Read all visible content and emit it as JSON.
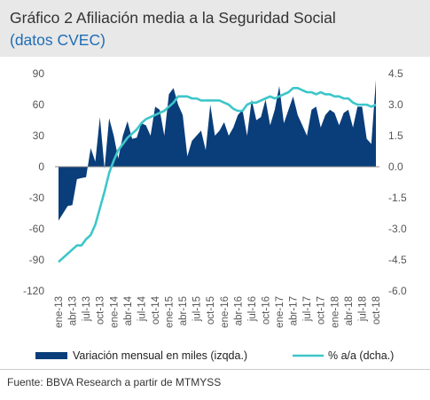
{
  "title": "Gráfico 2 Afiliación media a la Seguridad Social",
  "subtitle": "(datos CVEC)",
  "source": "Fuente: BBVA Research a partir de MTMYSS",
  "colors": {
    "area": "#0a3e7a",
    "line": "#3ec6c9",
    "title_blue": "#1f6db5"
  },
  "chart_data": {
    "type": "area",
    "x": [
      "ene-13",
      "feb-13",
      "mar-13",
      "abr-13",
      "may-13",
      "jun-13",
      "jul-13",
      "ago-13",
      "sep-13",
      "oct-13",
      "nov-13",
      "dic-13",
      "ene-14",
      "feb-14",
      "mar-14",
      "abr-14",
      "may-14",
      "jun-14",
      "jul-14",
      "ago-14",
      "sep-14",
      "oct-14",
      "nov-14",
      "dic-14",
      "ene-15",
      "feb-15",
      "mar-15",
      "abr-15",
      "may-15",
      "jun-15",
      "jul-15",
      "ago-15",
      "sep-15",
      "oct-15",
      "nov-15",
      "dic-15",
      "ene-16",
      "feb-16",
      "mar-16",
      "abr-16",
      "may-16",
      "jun-16",
      "jul-16",
      "ago-16",
      "sep-16",
      "oct-16",
      "nov-16",
      "dic-16",
      "ene-17",
      "feb-17",
      "mar-17",
      "abr-17",
      "may-17",
      "jun-17",
      "jul-17",
      "ago-17",
      "sep-17",
      "oct-17",
      "nov-17",
      "dic-17",
      "ene-18",
      "feb-18",
      "mar-18",
      "abr-18",
      "may-18",
      "jun-18",
      "jul-18",
      "ago-18",
      "sep-18",
      "oct-18"
    ],
    "x_tick_labels": [
      "ene-13",
      "abr-13",
      "jul-13",
      "oct-13",
      "ene-14",
      "abr-14",
      "jul-14",
      "oct-14",
      "ene-15",
      "abr-15",
      "jul-15",
      "oct-15",
      "ene-16",
      "abr-16",
      "jul-16",
      "oct-16",
      "ene-17",
      "abr-17",
      "jul-17",
      "oct-17",
      "ene-18",
      "abr-18",
      "jul-18",
      "oct-18"
    ],
    "series": [
      {
        "name": "Variación mensual en miles (izqda.)",
        "axis": "left",
        "values": [
          -52,
          -45,
          -38,
          -37,
          -12,
          -11,
          -10,
          18,
          5,
          48,
          -2,
          47,
          30,
          8,
          30,
          44,
          27,
          28,
          42,
          40,
          30,
          58,
          55,
          30,
          70,
          76,
          60,
          50,
          10,
          25,
          30,
          35,
          16,
          60,
          30,
          35,
          43,
          30,
          38,
          50,
          55,
          30,
          65,
          45,
          48,
          65,
          40,
          55,
          78,
          42,
          55,
          68,
          50,
          40,
          30,
          55,
          58,
          38,
          50,
          55,
          52,
          40,
          52,
          55,
          38,
          58,
          58,
          27,
          22,
          84
        ]
      },
      {
        "name": "% a/a (dcha.)",
        "axis": "right",
        "values": [
          -4.6,
          -4.4,
          -4.2,
          -4.0,
          -3.8,
          -3.8,
          -3.5,
          -3.3,
          -2.8,
          -2.0,
          -1.2,
          -0.3,
          0.3,
          0.8,
          1.1,
          1.4,
          1.6,
          1.8,
          2.1,
          2.3,
          2.4,
          2.5,
          2.6,
          2.7,
          2.9,
          3.1,
          3.4,
          3.4,
          3.4,
          3.3,
          3.3,
          3.2,
          3.2,
          3.2,
          3.2,
          3.2,
          3.1,
          3.0,
          2.8,
          2.7,
          2.7,
          3.0,
          3.1,
          3.1,
          3.2,
          3.3,
          3.4,
          3.3,
          3.4,
          3.5,
          3.6,
          3.8,
          3.8,
          3.7,
          3.6,
          3.6,
          3.5,
          3.6,
          3.5,
          3.5,
          3.4,
          3.4,
          3.3,
          3.3,
          3.1,
          3.0,
          3.0,
          3.0,
          2.9,
          3.0
        ]
      }
    ],
    "y_left": {
      "ticks": [
        90,
        60,
        30,
        0,
        -30,
        -60,
        -90,
        -120
      ],
      "labels": [
        "90",
        "60",
        "30",
        "0",
        "-30",
        "-60",
        "-90",
        "-120"
      ],
      "range": [
        -120,
        90
      ]
    },
    "y_right": {
      "ticks": [
        4.5,
        3.0,
        1.5,
        0.0,
        -1.5,
        -3.0,
        -4.5,
        -6.0
      ],
      "labels": [
        "4.5",
        "3.0",
        "1.5",
        "0.0",
        "-1.5",
        "-3.0",
        "-4.5",
        "-6.0"
      ],
      "range": [
        -6.0,
        4.5
      ]
    },
    "grid": false,
    "legend_placement": "bottom"
  }
}
